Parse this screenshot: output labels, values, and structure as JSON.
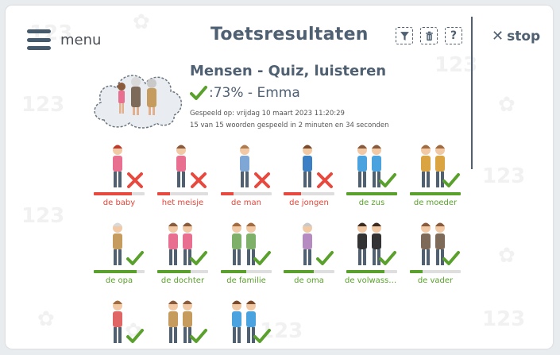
{
  "menu": {
    "label": "menu"
  },
  "header": {
    "title": "Toetsresultaten",
    "stop_label": "stop",
    "help_label": "?"
  },
  "quiz": {
    "title": "Mensen - Quiz, luisteren",
    "score": ":73% - Emma",
    "played_on": "Gespeeld op: vrijdag 10 maart 2023 11:20:29",
    "summary": "15 van 15 woorden gespeeld in 2 minuten en 34 seconden"
  },
  "colors": {
    "correct": "#5aa02c",
    "wrong": "#e8493f",
    "wrong_label": "#e0463a",
    "correct_label": "#5aa02c"
  },
  "words": [
    {
      "label": "de baby",
      "correct": false,
      "progress": 0.75
    },
    {
      "label": "het meisje",
      "correct": false,
      "progress": 0.25
    },
    {
      "label": "de man",
      "correct": false,
      "progress": 0.25
    },
    {
      "label": "de jongen",
      "correct": false,
      "progress": 0.35
    },
    {
      "label": "de zus",
      "correct": true,
      "progress": 1.0
    },
    {
      "label": "de moeder",
      "correct": true,
      "progress": 1.0
    },
    {
      "label": "de opa",
      "correct": true,
      "progress": 0.85
    },
    {
      "label": "de dochter",
      "correct": true,
      "progress": 0.65
    },
    {
      "label": "de familie",
      "correct": true,
      "progress": 0.5
    },
    {
      "label": "de oma",
      "correct": true,
      "progress": 0.6
    },
    {
      "label": "de volwasse...",
      "correct": true,
      "progress": 0.75
    },
    {
      "label": "de vader",
      "correct": true,
      "progress": 0.25
    },
    {
      "label": "",
      "correct": true,
      "progress": 0
    },
    {
      "label": "",
      "correct": true,
      "progress": 0
    },
    {
      "label": "",
      "correct": true,
      "progress": 0
    }
  ]
}
